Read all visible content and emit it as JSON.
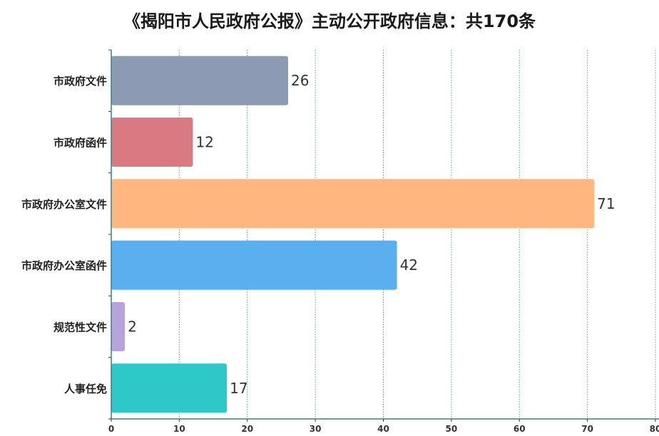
{
  "title": "《揭阳市人民政府公报》主动公开政府信息：共170条",
  "chart_data": {
    "type": "bar",
    "orientation": "horizontal",
    "title": "《揭阳市人民政府公报》主动公开政府信息：共170条",
    "categories": [
      "市政府文件",
      "市政府函件",
      "市政府办公室文件",
      "市政府办公室函件",
      "规范性文件",
      "人事任免"
    ],
    "values": [
      26,
      12,
      71,
      42,
      2,
      17
    ],
    "colors": [
      "#8d9ab3",
      "#d97a80",
      "#ffb77f",
      "#5ab0ee",
      "#b8a3dc",
      "#2ec8c8"
    ],
    "xlim": [
      0,
      80
    ],
    "xticks": [
      0,
      10,
      20,
      30,
      40,
      50,
      60,
      70,
      80
    ],
    "grid": true,
    "grid_color": "#5e9a9c",
    "axis_color": "#3f7f82",
    "xlabel": "",
    "ylabel": ""
  }
}
